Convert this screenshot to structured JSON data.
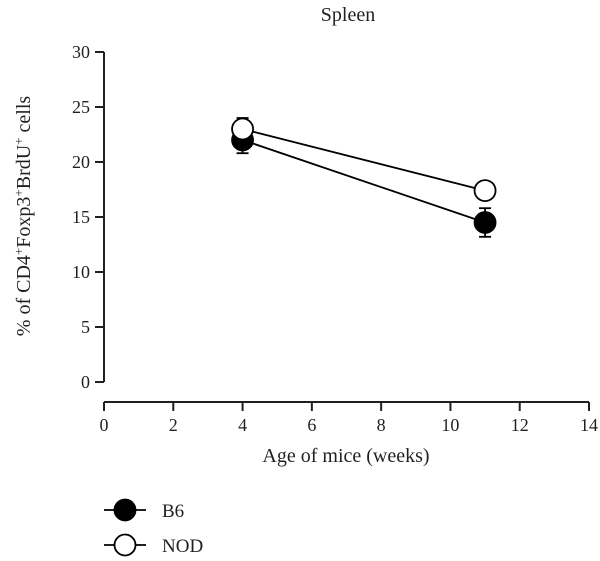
{
  "chart_data": {
    "type": "line",
    "title": "Spleen",
    "xlabel": "Age of mice (weeks)",
    "ylabel_parts": [
      "% of CD4",
      "+",
      "Foxp3",
      "+",
      "BrdU",
      "+",
      " cells"
    ],
    "xlim": [
      0,
      14
    ],
    "ylim": [
      0,
      30
    ],
    "x_ticks": [
      0,
      2,
      4,
      6,
      8,
      10,
      12,
      14
    ],
    "y_ticks": [
      0,
      5,
      10,
      15,
      20,
      25,
      30
    ],
    "grid": false,
    "legend_position": "bottom-left",
    "series": [
      {
        "name": "B6",
        "marker": "filled-circle",
        "color": "#000000",
        "points": [
          {
            "x": 4,
            "y": 22.0,
            "err": 1.2
          },
          {
            "x": 11,
            "y": 14.5,
            "err": 1.3
          }
        ]
      },
      {
        "name": "NOD",
        "marker": "open-circle",
        "color": "#000000",
        "points": [
          {
            "x": 4,
            "y": 23.0,
            "err": 1.0
          },
          {
            "x": 11,
            "y": 17.4,
            "err": 0.5
          }
        ]
      }
    ]
  }
}
